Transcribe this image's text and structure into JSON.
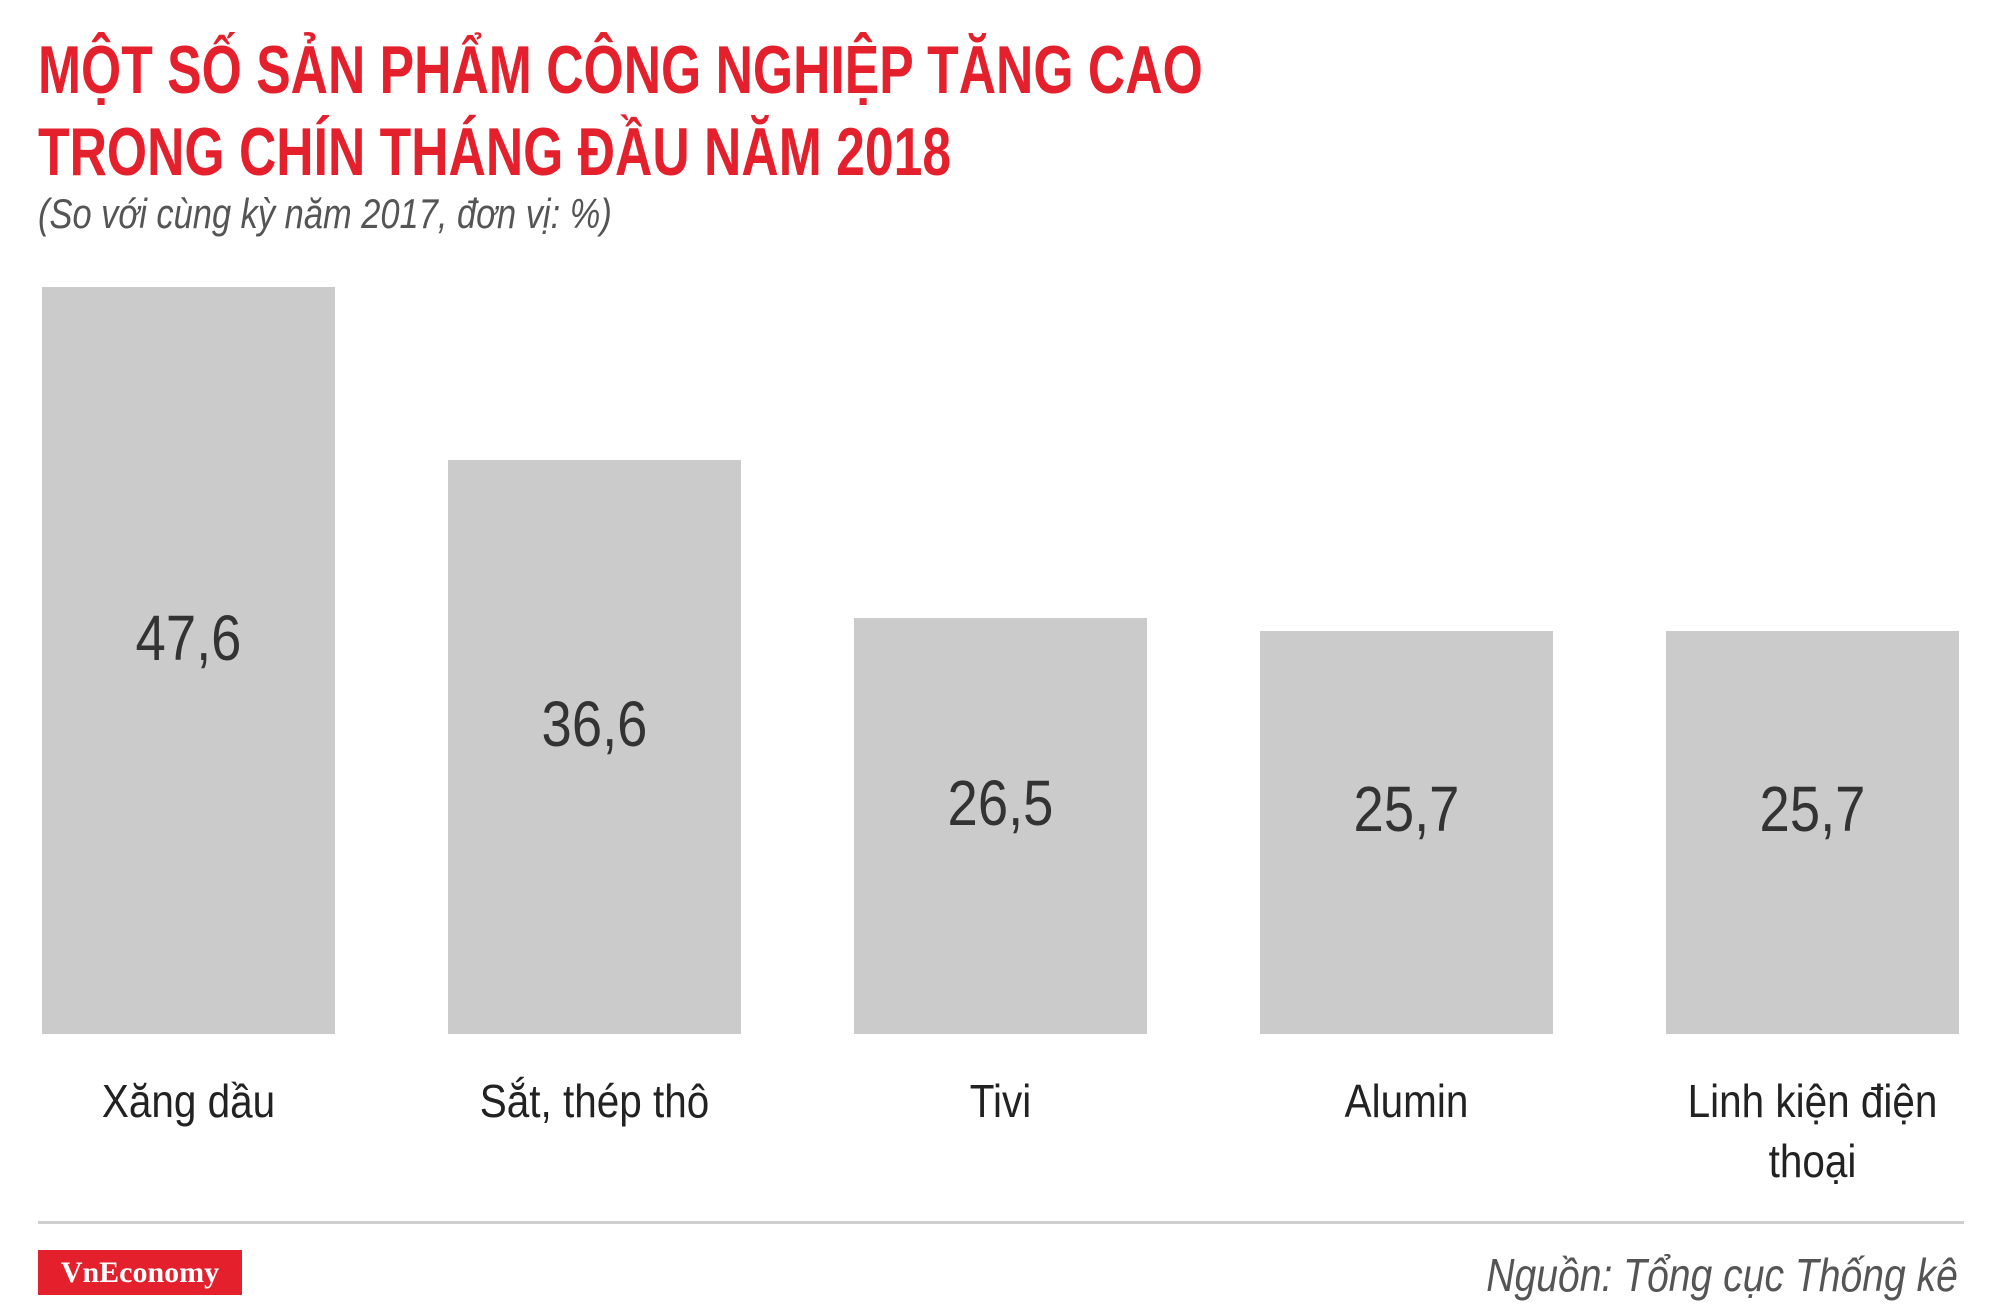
{
  "chart_data": {
    "type": "bar",
    "title": [
      "MỘT SỐ SẢN PHẨM CÔNG NGHIỆP TĂNG CAO",
      "TRONG CHÍN THÁNG ĐẦU NĂM 2018"
    ],
    "subtitle": "(So với cùng kỳ năm 2017, đơn vị: %)",
    "categories": [
      "Xăng dầu",
      "Sắt, thép thô",
      "Tivi",
      "Alumin",
      "Linh kiện điện thoại"
    ],
    "values": [
      47.6,
      36.6,
      26.5,
      25.7,
      25.7
    ],
    "value_labels": [
      "47,6",
      "36,6",
      "26,5",
      "25,7",
      "25,7"
    ],
    "color": "#cccbcc",
    "ylim": [
      0,
      47.6
    ],
    "logo": "VnEconomy",
    "source": "Nguồn: Tổng cục Thống kê"
  }
}
